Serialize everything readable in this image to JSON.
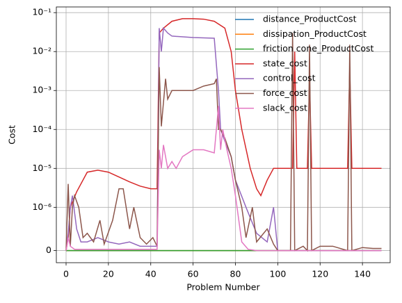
{
  "chart_data": {
    "type": "line",
    "xlabel": "Problem Number",
    "ylabel": "Cost",
    "yscale": "symlog",
    "linthresh": 1e-06,
    "linscale": 1,
    "grid": true,
    "legend": "upper right",
    "xlim": [
      -4.6,
      153.1
    ],
    "ylim": [
      -2.8e-07,
      0.14
    ],
    "xticks": [
      0,
      20,
      40,
      60,
      80,
      100,
      120,
      140
    ],
    "yticks": [
      0,
      {
        "value": 1e-06,
        "label": "10⁻⁶"
      },
      {
        "value": 1e-05,
        "label": "10⁻⁵"
      },
      {
        "value": 0.0001,
        "label": "10⁻⁴"
      },
      {
        "value": 0.001,
        "label": "10⁻³"
      },
      {
        "value": 0.01,
        "label": "10⁻²"
      },
      {
        "value": 0.1,
        "label": "10⁻¹"
      }
    ],
    "series": [
      {
        "name": "distance_ProductCost",
        "color": "#1f77b4",
        "x": [
          0,
          149
        ],
        "values": [
          0,
          0
        ]
      },
      {
        "name": "dissipation_ProductCost",
        "color": "#ff7f0e",
        "x": [
          0,
          149
        ],
        "values": [
          0,
          0
        ]
      },
      {
        "name": "friction cone_ProductCost",
        "color": "#2ca02c",
        "x": [
          0,
          149
        ],
        "values": [
          0,
          0
        ]
      },
      {
        "name": "state_cost",
        "color": "#d62728",
        "x": [
          0,
          1,
          2,
          5,
          10,
          15,
          20,
          25,
          30,
          35,
          40,
          43,
          44,
          46,
          50,
          55,
          60,
          65,
          70,
          75,
          78,
          80,
          83,
          87,
          90,
          92,
          95,
          98,
          107,
          108,
          109,
          114,
          115,
          116,
          133,
          134,
          135,
          149
        ],
        "values": [
          0,
          3e-07,
          1e-06,
          2.5e-06,
          8e-06,
          9e-06,
          8e-06,
          6e-06,
          4.5e-06,
          3.5e-06,
          3e-06,
          3e-06,
          0.03,
          0.04,
          0.06,
          0.07,
          0.07,
          0.068,
          0.06,
          0.04,
          0.01,
          0.001,
          0.0001,
          1e-05,
          3e-06,
          2e-06,
          5e-06,
          1e-05,
          1e-05,
          0.01,
          1e-05,
          1e-05,
          0.002,
          1e-05,
          1e-05,
          0.004,
          1e-05,
          1e-05
        ]
      },
      {
        "name": "control_cost",
        "color": "#9467bd",
        "x": [
          0,
          1,
          2,
          3,
          5,
          7,
          10,
          15,
          20,
          25,
          30,
          35,
          40,
          43,
          44,
          45,
          46,
          48,
          50,
          60,
          70,
          72,
          73,
          75,
          78,
          80,
          85,
          90,
          95,
          98,
          100,
          149
        ],
        "values": [
          0,
          4e-07,
          1e-06,
          2e-06,
          5e-07,
          2e-07,
          2e-07,
          3e-07,
          2e-07,
          1.5e-07,
          2e-07,
          1e-07,
          1e-07,
          1e-07,
          0.04,
          0.01,
          0.04,
          0.03,
          0.025,
          0.023,
          0.022,
          0.001,
          0.0001,
          5e-05,
          2e-05,
          5e-06,
          1e-06,
          4e-07,
          2e-07,
          1e-06,
          0,
          0
        ]
      },
      {
        "name": "force_cost",
        "color": "#8c564b",
        "x": [
          0,
          1,
          2,
          3,
          4,
          6,
          8,
          10,
          13,
          16,
          18,
          22,
          25,
          27,
          30,
          32,
          35,
          38,
          41,
          43,
          44,
          45,
          47,
          48,
          50,
          55,
          60,
          65,
          70,
          71,
          72,
          73,
          75,
          78,
          80,
          83,
          85,
          88,
          90,
          95,
          98,
          100,
          106,
          107,
          108,
          112,
          114,
          115,
          116,
          120,
          126,
          133,
          134,
          135,
          140,
          145,
          149
        ],
        "values": [
          0,
          4e-06,
          1e-07,
          1e-06,
          2e-06,
          1e-06,
          3e-07,
          4e-07,
          2e-07,
          7e-07,
          1.5e-07,
          7e-07,
          3e-06,
          3e-06,
          5e-07,
          1e-06,
          3e-07,
          1.5e-07,
          3e-07,
          1e-07,
          0.004,
          0.00012,
          0.002,
          0.0006,
          0.001,
          0.001,
          0.001,
          0.0013,
          0.0015,
          0.002,
          0.0001,
          0.0001,
          6e-05,
          2e-05,
          5e-06,
          1e-06,
          3e-07,
          1e-06,
          2e-07,
          5e-07,
          1.5e-07,
          0,
          0,
          0.03,
          0,
          1e-07,
          0,
          0.015,
          0,
          1e-07,
          1e-07,
          0,
          0.015,
          0,
          7e-08,
          5e-08,
          5e-08
        ]
      },
      {
        "name": "slack_cost",
        "color": "#e377c2",
        "x": [
          0,
          1,
          2,
          4,
          43,
          44,
          45,
          46,
          48,
          50,
          52,
          55,
          60,
          65,
          70,
          72,
          73,
          74,
          76,
          78,
          80,
          83,
          86,
          90,
          149
        ],
        "values": [
          0,
          3e-07,
          1e-07,
          3e-08,
          3e-08,
          3e-05,
          1e-05,
          4e-05,
          1e-05,
          1.5e-05,
          1e-05,
          2e-05,
          3e-05,
          3e-05,
          2.5e-05,
          0.0004,
          3e-05,
          0.0001,
          3e-05,
          1e-05,
          2e-06,
          2e-07,
          3e-08,
          0,
          0
        ]
      }
    ]
  }
}
